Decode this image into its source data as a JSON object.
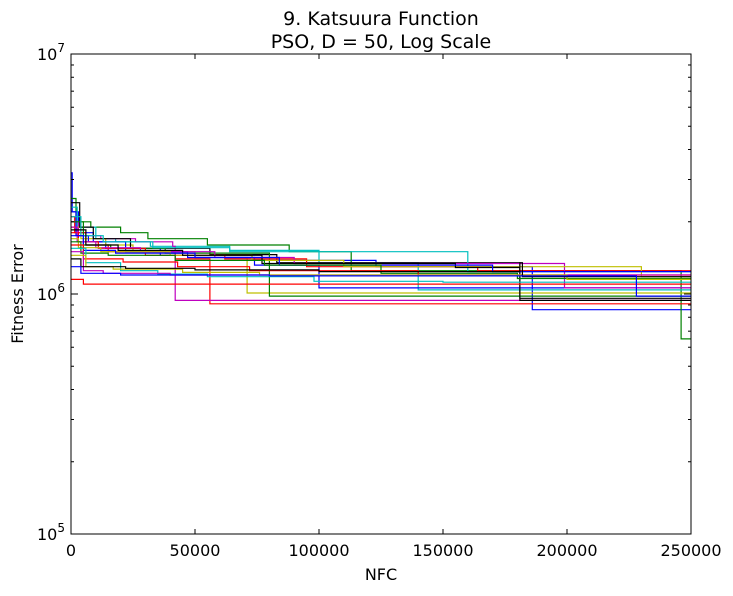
{
  "chart_data": {
    "type": "line",
    "title": "9.   Katsuura Function",
    "subtitle": "PSO, D = 50, Log Scale",
    "xlabel": "NFC",
    "ylabel": "Fitness Error",
    "x_scale": "linear",
    "y_scale": "log",
    "xlim": [
      0,
      250000
    ],
    "ylim": [
      100000,
      10000000
    ],
    "x_ticks": [
      0,
      50000,
      100000,
      150000,
      200000,
      250000
    ],
    "x_tick_labels": [
      "0",
      "50000",
      "100000",
      "150000",
      "200000",
      "250000"
    ],
    "y_ticks": [
      100000,
      1000000,
      10000000
    ],
    "y_tick_labels": [
      {
        "base": "10",
        "exp": "5"
      },
      {
        "base": "10",
        "exp": "6"
      },
      {
        "base": "10",
        "exp": "7"
      }
    ],
    "grid": false,
    "legend": "none",
    "series": [
      {
        "color": "#0000ff",
        "points": [
          [
            0,
            3200000
          ],
          [
            500,
            2200000
          ],
          [
            3000,
            1800000
          ],
          [
            9000,
            1650000
          ],
          [
            14000,
            1550000
          ],
          [
            36000,
            1450000
          ],
          [
            73000,
            1380000
          ],
          [
            123000,
            1300000
          ],
          [
            186000,
            860000
          ],
          [
            250000,
            860000
          ]
        ]
      },
      {
        "color": "#008000",
        "points": [
          [
            0,
            2500000
          ],
          [
            2000,
            2000000
          ],
          [
            8000,
            1900000
          ],
          [
            20000,
            1800000
          ],
          [
            31000,
            1700000
          ],
          [
            55000,
            1600000
          ],
          [
            88000,
            1500000
          ],
          [
            113000,
            1250000
          ],
          [
            246000,
            650000
          ],
          [
            250000,
            650000
          ]
        ]
      },
      {
        "color": "#ff0000",
        "points": [
          [
            0,
            2100000
          ],
          [
            1500,
            1800000
          ],
          [
            6000,
            1600000
          ],
          [
            15000,
            1500000
          ],
          [
            42000,
            1400000
          ],
          [
            56000,
            910000
          ],
          [
            250000,
            910000
          ]
        ]
      },
      {
        "color": "#00bfbf",
        "points": [
          [
            0,
            2300000
          ],
          [
            2500,
            1900000
          ],
          [
            10000,
            1700000
          ],
          [
            18000,
            1650000
          ],
          [
            32000,
            1580000
          ],
          [
            64000,
            1520000
          ],
          [
            100000,
            1350000
          ],
          [
            140000,
            1040000
          ],
          [
            250000,
            1040000
          ]
        ]
      },
      {
        "color": "#bf00bf",
        "points": [
          [
            0,
            2000000
          ],
          [
            3000,
            1750000
          ],
          [
            12000,
            1700000
          ],
          [
            26000,
            1650000
          ],
          [
            41000,
            1580000
          ],
          [
            42000,
            940000
          ],
          [
            250000,
            940000
          ]
        ]
      },
      {
        "color": "#bfbf00",
        "points": [
          [
            0,
            1900000
          ],
          [
            4000,
            1700000
          ],
          [
            14000,
            1600000
          ],
          [
            25000,
            1500000
          ],
          [
            50000,
            1420000
          ],
          [
            71000,
            1010000
          ],
          [
            250000,
            1010000
          ]
        ]
      },
      {
        "color": "#000000",
        "points": [
          [
            0,
            2400000
          ],
          [
            3500,
            1900000
          ],
          [
            9000,
            1700000
          ],
          [
            24000,
            1550000
          ],
          [
            56000,
            1460000
          ],
          [
            83000,
            1350000
          ],
          [
            181000,
            960000
          ],
          [
            250000,
            960000
          ]
        ]
      },
      {
        "color": "#0000ff",
        "points": [
          [
            0,
            2200000
          ],
          [
            2000,
            1750000
          ],
          [
            7000,
            1650000
          ],
          [
            22000,
            1500000
          ],
          [
            47000,
            1420000
          ],
          [
            74000,
            1320000
          ],
          [
            100000,
            1060000
          ],
          [
            250000,
            1060000
          ]
        ]
      },
      {
        "color": "#008000",
        "points": [
          [
            0,
            2000000
          ],
          [
            5000,
            1600000
          ],
          [
            16000,
            1550000
          ],
          [
            38000,
            1480000
          ],
          [
            80000,
            980000
          ],
          [
            250000,
            980000
          ]
        ]
      },
      {
        "color": "#ff0000",
        "points": [
          [
            0,
            1800000
          ],
          [
            3000,
            1650000
          ],
          [
            11000,
            1550000
          ],
          [
            30000,
            1450000
          ],
          [
            62000,
            1400000
          ],
          [
            95000,
            1300000
          ],
          [
            164000,
            1250000
          ],
          [
            250000,
            1250000
          ]
        ]
      },
      {
        "color": "#00bfbf",
        "points": [
          [
            0,
            2100000
          ],
          [
            4000,
            1750000
          ],
          [
            13000,
            1650000
          ],
          [
            33000,
            1560000
          ],
          [
            64000,
            1500000
          ],
          [
            160000,
            1240000
          ],
          [
            250000,
            1240000
          ]
        ]
      },
      {
        "color": "#bf00bf",
        "points": [
          [
            0,
            1900000
          ],
          [
            2500,
            1650000
          ],
          [
            10000,
            1560000
          ],
          [
            28000,
            1500000
          ],
          [
            58000,
            1420000
          ],
          [
            90000,
            1340000
          ],
          [
            199000,
            1060000
          ],
          [
            250000,
            1060000
          ]
        ]
      },
      {
        "color": "#bfbf00",
        "points": [
          [
            0,
            1700000
          ],
          [
            3000,
            1560000
          ],
          [
            12000,
            1500000
          ],
          [
            40000,
            1450000
          ],
          [
            73000,
            1380000
          ],
          [
            110000,
            1300000
          ],
          [
            230000,
            1180000
          ],
          [
            250000,
            1180000
          ]
        ]
      },
      {
        "color": "#000000",
        "points": [
          [
            0,
            1850000
          ],
          [
            6000,
            1600000
          ],
          [
            19000,
            1520000
          ],
          [
            45000,
            1450000
          ],
          [
            77000,
            1340000
          ],
          [
            155000,
            1290000
          ],
          [
            181000,
            940000
          ],
          [
            250000,
            940000
          ]
        ]
      },
      {
        "color": "#0000ff",
        "points": [
          [
            0,
            1750000
          ],
          [
            5000,
            1520000
          ],
          [
            18000,
            1480000
          ],
          [
            50000,
            1420000
          ],
          [
            84000,
            1320000
          ],
          [
            170000,
            1240000
          ],
          [
            250000,
            1240000
          ]
        ]
      },
      {
        "color": "#008000",
        "points": [
          [
            0,
            1650000
          ],
          [
            4000,
            1480000
          ],
          [
            15000,
            1450000
          ],
          [
            42000,
            1380000
          ],
          [
            78000,
            1320000
          ],
          [
            125000,
            1220000
          ],
          [
            180000,
            1160000
          ],
          [
            250000,
            1160000
          ]
        ]
      },
      {
        "color": "#ff0000",
        "points": [
          [
            0,
            1600000
          ],
          [
            5000,
            1400000
          ],
          [
            21000,
            1360000
          ],
          [
            43000,
            1300000
          ],
          [
            72000,
            1250000
          ],
          [
            140000,
            1200000
          ],
          [
            250000,
            1200000
          ]
        ]
      },
      {
        "color": "#00bfbf",
        "points": [
          [
            0,
            1550000
          ],
          [
            6000,
            1350000
          ],
          [
            20000,
            1250000
          ],
          [
            35000,
            1210000
          ],
          [
            55000,
            1180000
          ],
          [
            98000,
            1130000
          ],
          [
            150000,
            1120000
          ],
          [
            250000,
            1120000
          ]
        ]
      },
      {
        "color": "#bf00bf",
        "points": [
          [
            0,
            1500000
          ],
          [
            5000,
            1250000
          ],
          [
            13000,
            1220000
          ],
          [
            40000,
            1200000
          ],
          [
            250000,
            1200000
          ]
        ]
      },
      {
        "color": "#bfbf00",
        "points": [
          [
            0,
            1450000
          ],
          [
            6000,
            1300000
          ],
          [
            17000,
            1270000
          ],
          [
            45000,
            1230000
          ],
          [
            76000,
            1200000
          ],
          [
            200000,
            1150000
          ],
          [
            250000,
            1150000
          ]
        ]
      },
      {
        "color": "#000000",
        "points": [
          [
            0,
            1400000
          ],
          [
            4000,
            1300000
          ],
          [
            22000,
            1280000
          ],
          [
            50000,
            1260000
          ],
          [
            100000,
            1240000
          ],
          [
            181000,
            1350000
          ],
          [
            182000,
            1180000
          ],
          [
            250000,
            1180000
          ]
        ]
      },
      {
        "color": "#ff0000",
        "points": [
          [
            0,
            1150000
          ],
          [
            5000,
            1100000
          ],
          [
            250000,
            1100000
          ]
        ]
      },
      {
        "color": "#0000ff",
        "points": [
          [
            0,
            1300000
          ],
          [
            4000,
            1220000
          ],
          [
            20000,
            1200000
          ],
          [
            80000,
            1190000
          ],
          [
            228000,
            980000
          ],
          [
            250000,
            980000
          ]
        ]
      }
    ]
  }
}
